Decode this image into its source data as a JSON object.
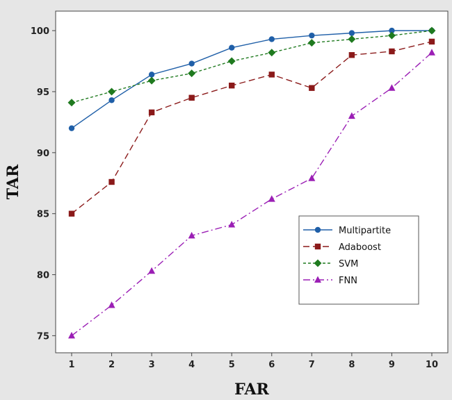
{
  "chart_data": {
    "type": "line",
    "title": "",
    "xlabel": "FAR",
    "ylabel": "TAR",
    "x": [
      1,
      2,
      3,
      4,
      5,
      6,
      7,
      8,
      9,
      10
    ],
    "xlim": [
      0.6,
      10.4
    ],
    "ylim": [
      73.6,
      101.6
    ],
    "yticks": [
      75,
      80,
      85,
      90,
      95,
      100
    ],
    "grid": false,
    "legend_position": "bottom-right",
    "series": [
      {
        "name": "Multipartite",
        "color": "#1f5fa8",
        "marker": "circle",
        "dash": "solid",
        "values": [
          92.0,
          94.3,
          96.4,
          97.3,
          98.6,
          99.3,
          99.6,
          99.8,
          100.0,
          100.0
        ]
      },
      {
        "name": "Adaboost",
        "color": "#8b1a1a",
        "marker": "square",
        "dash": "long-dash",
        "values": [
          85.0,
          87.6,
          93.3,
          94.5,
          95.5,
          96.4,
          95.3,
          98.0,
          98.3,
          99.1
        ]
      },
      {
        "name": "SVM",
        "color": "#1f7a1f",
        "marker": "diamond",
        "dash": "short-dash",
        "values": [
          94.1,
          95.0,
          95.9,
          96.5,
          97.5,
          98.2,
          99.0,
          99.3,
          99.6,
          100.0
        ]
      },
      {
        "name": "FNN",
        "color": "#9b1fb5",
        "marker": "triangle",
        "dash": "dash-dot",
        "values": [
          75.0,
          77.5,
          80.3,
          83.2,
          84.1,
          86.2,
          87.9,
          93.0,
          95.3,
          98.2
        ]
      }
    ]
  }
}
